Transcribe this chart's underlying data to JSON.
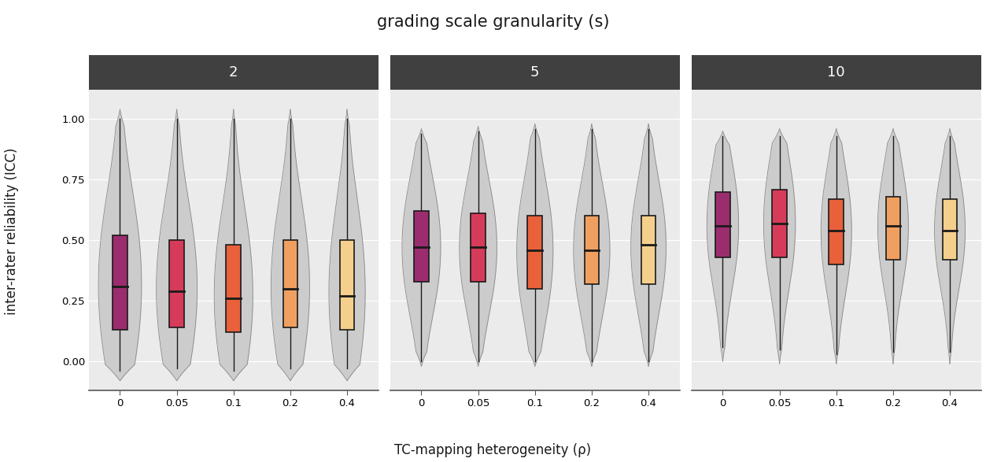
{
  "title": "grading scale granularity (s)",
  "xlabel": "TC-mapping heterogeneity (ρ)",
  "ylabel": "inter-rater reliability (ICC)",
  "panels": [
    "2",
    "5",
    "10"
  ],
  "rho_labels": [
    "0",
    "0.05",
    "0.1",
    "0.2",
    "0.4"
  ],
  "rho_keys": [
    "0",
    "0.05",
    "0.1",
    "0.2",
    "0.4"
  ],
  "colors": [
    "#9B2D6E",
    "#D63B5A",
    "#E8613A",
    "#EFA060",
    "#F5D08C"
  ],
  "panel_bg": "#EBEBEB",
  "header_bg": "#404040",
  "header_text": "#FFFFFF",
  "grid_color": "#FFFFFF",
  "violin_color": "#CCCCCC",
  "violin_edge_color": "#888888",
  "box_edge_color": "#1A1A1A",
  "fig_bg": "#FFFFFF",
  "ylim": [
    -0.12,
    1.12
  ],
  "yticks": [
    0.0,
    0.25,
    0.5,
    0.75,
    1.0
  ],
  "ytick_labels": [
    "0.00",
    "0.25",
    "0.50",
    "0.75",
    "1.00"
  ],
  "data": {
    "2": {
      "0": {
        "q1": 0.13,
        "median": 0.31,
        "q3": 0.52,
        "whislo": -0.04,
        "whishi": 1.0,
        "vmin": -0.08,
        "vmax": 1.04,
        "vwidth": 0.38
      },
      "0.05": {
        "q1": 0.14,
        "median": 0.29,
        "q3": 0.5,
        "whislo": -0.03,
        "whishi": 1.0,
        "vmin": -0.08,
        "vmax": 1.04,
        "vwidth": 0.36
      },
      "0.1": {
        "q1": 0.12,
        "median": 0.26,
        "q3": 0.48,
        "whislo": -0.04,
        "whishi": 1.0,
        "vmin": -0.08,
        "vmax": 1.04,
        "vwidth": 0.34
      },
      "0.2": {
        "q1": 0.14,
        "median": 0.3,
        "q3": 0.5,
        "whislo": -0.03,
        "whishi": 1.0,
        "vmin": -0.08,
        "vmax": 1.04,
        "vwidth": 0.34
      },
      "0.4": {
        "q1": 0.13,
        "median": 0.27,
        "q3": 0.5,
        "whislo": -0.03,
        "whishi": 1.0,
        "vmin": -0.08,
        "vmax": 1.04,
        "vwidth": 0.32
      }
    },
    "5": {
      "0": {
        "q1": 0.33,
        "median": 0.47,
        "q3": 0.62,
        "whislo": 0.0,
        "whishi": 0.94,
        "vmin": -0.02,
        "vmax": 0.96,
        "vwidth": 0.34
      },
      "0.05": {
        "q1": 0.33,
        "median": 0.47,
        "q3": 0.61,
        "whislo": 0.0,
        "whishi": 0.95,
        "vmin": -0.02,
        "vmax": 0.97,
        "vwidth": 0.33
      },
      "0.1": {
        "q1": 0.3,
        "median": 0.46,
        "q3": 0.6,
        "whislo": 0.0,
        "whishi": 0.96,
        "vmin": -0.02,
        "vmax": 0.98,
        "vwidth": 0.32
      },
      "0.2": {
        "q1": 0.32,
        "median": 0.46,
        "q3": 0.6,
        "whislo": 0.0,
        "whishi": 0.96,
        "vmin": -0.02,
        "vmax": 0.98,
        "vwidth": 0.32
      },
      "0.4": {
        "q1": 0.32,
        "median": 0.48,
        "q3": 0.6,
        "whislo": 0.0,
        "whishi": 0.96,
        "vmin": -0.02,
        "vmax": 0.98,
        "vwidth": 0.31
      }
    },
    "10": {
      "0": {
        "q1": 0.43,
        "median": 0.56,
        "q3": 0.7,
        "whislo": 0.06,
        "whishi": 0.93,
        "vmin": 0.0,
        "vmax": 0.95,
        "vwidth": 0.28
      },
      "0.05": {
        "q1": 0.43,
        "median": 0.57,
        "q3": 0.71,
        "whislo": 0.05,
        "whishi": 0.93,
        "vmin": -0.01,
        "vmax": 0.96,
        "vwidth": 0.28
      },
      "0.1": {
        "q1": 0.4,
        "median": 0.54,
        "q3": 0.67,
        "whislo": 0.03,
        "whishi": 0.93,
        "vmin": -0.01,
        "vmax": 0.96,
        "vwidth": 0.27
      },
      "0.2": {
        "q1": 0.42,
        "median": 0.56,
        "q3": 0.68,
        "whislo": 0.04,
        "whishi": 0.93,
        "vmin": -0.01,
        "vmax": 0.96,
        "vwidth": 0.27
      },
      "0.4": {
        "q1": 0.42,
        "median": 0.54,
        "q3": 0.67,
        "whislo": 0.04,
        "whishi": 0.93,
        "vmin": -0.01,
        "vmax": 0.96,
        "vwidth": 0.27
      }
    }
  }
}
